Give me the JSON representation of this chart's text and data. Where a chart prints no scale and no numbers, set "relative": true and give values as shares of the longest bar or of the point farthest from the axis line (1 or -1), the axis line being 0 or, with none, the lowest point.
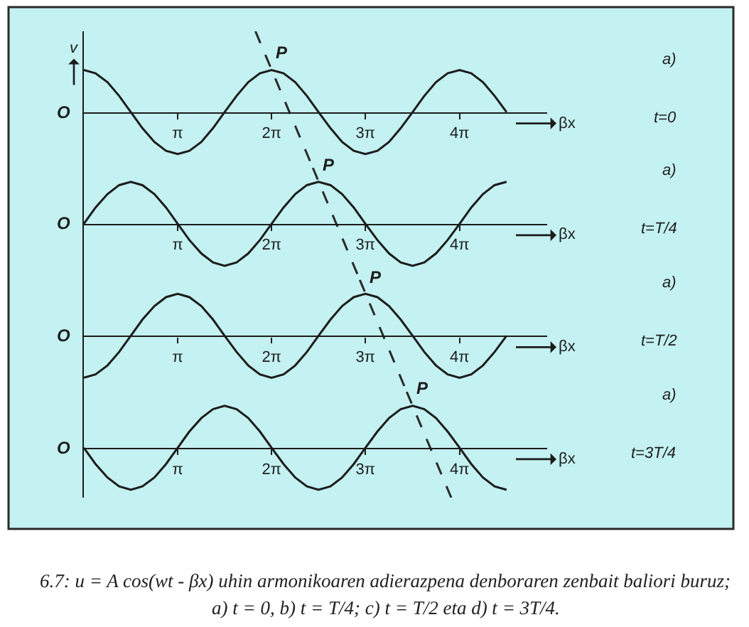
{
  "chart_data": [
    {
      "type": "line",
      "relative": true,
      "xlabel": "βx",
      "ylabel": "v",
      "xlim": [
        0,
        15.5
      ],
      "xticks": [
        {
          "value": 3.14,
          "label": "π"
        },
        {
          "value": 6.28,
          "label": "2π"
        },
        {
          "value": 9.42,
          "label": "3π"
        },
        {
          "value": 12.57,
          "label": "4π"
        }
      ],
      "x": [
        0,
        0.39,
        0.79,
        1.18,
        1.57,
        1.96,
        2.36,
        2.75,
        3.14,
        3.53,
        3.93,
        4.32,
        4.71,
        5.11,
        5.5,
        5.89,
        6.28,
        6.68,
        7.07,
        7.46,
        7.85,
        8.25,
        8.64,
        9.03,
        9.42,
        9.82,
        10.21,
        10.6,
        11.0,
        11.39,
        11.78,
        12.17,
        12.57,
        12.96,
        13.35,
        13.74,
        14.14
      ],
      "series": [
        {
          "color": "#1c1c1c",
          "values": [
            0.52,
            0.48,
            0.37,
            0.2,
            0,
            -0.2,
            -0.37,
            -0.48,
            -0.52,
            -0.48,
            -0.37,
            -0.2,
            0,
            0.2,
            0.37,
            0.48,
            0.52,
            0.48,
            0.37,
            0.2,
            0,
            -0.2,
            -0.37,
            -0.48,
            -0.52,
            -0.48,
            -0.37,
            -0.2,
            0,
            0.2,
            0.37,
            0.48,
            0.52,
            0.48,
            0.37,
            0.2,
            0
          ]
        },
        {
          "color": "#2a2a2a",
          "line_style": "dashed",
          "x": [
            5.74,
            7.66
          ],
          "values": [
            1,
            -0.69
          ]
        }
      ],
      "annotations": [
        "O",
        "a)",
        "t=0",
        {
          "text": "P",
          "x": 6.28,
          "y": 0.52
        }
      ]
    },
    {
      "type": "line",
      "relative": true,
      "xlabel": "βx",
      "xlim": [
        0,
        15.5
      ],
      "xticks": [
        {
          "value": 3.14,
          "label": "π"
        },
        {
          "value": 6.28,
          "label": "2π"
        },
        {
          "value": 9.42,
          "label": "3π"
        },
        {
          "value": 12.57,
          "label": "4π"
        }
      ],
      "x": [
        0,
        0.39,
        0.79,
        1.18,
        1.57,
        1.96,
        2.36,
        2.75,
        3.14,
        3.53,
        3.93,
        4.32,
        4.71,
        5.11,
        5.5,
        5.89,
        6.28,
        6.68,
        7.07,
        7.46,
        7.85,
        8.25,
        8.64,
        9.03,
        9.42,
        9.82,
        10.21,
        10.6,
        11.0,
        11.39,
        11.78,
        12.17,
        12.57,
        12.96,
        13.35,
        13.74,
        14.14
      ],
      "series": [
        {
          "color": "#1c1c1c",
          "values": [
            0,
            0.29,
            0.53,
            0.69,
            0.75,
            0.69,
            0.53,
            0.29,
            0,
            -0.29,
            -0.53,
            -0.69,
            -0.75,
            -0.69,
            -0.53,
            -0.29,
            0,
            0.29,
            0.53,
            0.69,
            0.75,
            0.69,
            0.53,
            0.29,
            0,
            -0.29,
            -0.53,
            -0.69,
            -0.75,
            -0.69,
            -0.53,
            -0.29,
            0,
            0.29,
            0.53,
            0.69,
            0.75
          ]
        },
        {
          "color": "#2a2a2a",
          "line_style": "dashed",
          "x": [
            7.66,
            9.23
          ],
          "values": [
            1,
            -1
          ]
        }
      ],
      "annotations": [
        "O",
        "a)",
        "t=T/4",
        {
          "text": "P",
          "x": 7.85,
          "y": 0.75
        }
      ]
    },
    {
      "type": "line",
      "relative": true,
      "xlabel": "βx",
      "xlim": [
        0,
        15.5
      ],
      "xticks": [
        {
          "value": 3.14,
          "label": "π"
        },
        {
          "value": 6.28,
          "label": "2π"
        },
        {
          "value": 9.42,
          "label": "3π"
        },
        {
          "value": 12.57,
          "label": "4π"
        }
      ],
      "x": [
        0,
        0.39,
        0.79,
        1.18,
        1.57,
        1.96,
        2.36,
        2.75,
        3.14,
        3.53,
        3.93,
        4.32,
        4.71,
        5.11,
        5.5,
        5.89,
        6.28,
        6.68,
        7.07,
        7.46,
        7.85,
        8.25,
        8.64,
        9.03,
        9.42,
        9.82,
        10.21,
        10.6,
        11.0,
        11.39,
        11.78,
        12.17,
        12.57,
        12.96,
        13.35,
        13.74,
        14.14
      ],
      "series": [
        {
          "color": "#1c1c1c",
          "values": [
            -0.75,
            -0.69,
            -0.53,
            -0.29,
            0,
            0.29,
            0.53,
            0.69,
            0.75,
            0.69,
            0.53,
            0.29,
            0,
            -0.29,
            -0.53,
            -0.69,
            -0.75,
            -0.69,
            -0.53,
            -0.29,
            0,
            0.29,
            0.53,
            0.69,
            0.75,
            0.69,
            0.53,
            0.29,
            0,
            -0.29,
            -0.53,
            -0.69,
            -0.75,
            -0.69,
            -0.53,
            -0.29,
            0
          ]
        },
        {
          "color": "#2a2a2a",
          "line_style": "dashed",
          "x": [
            9.23,
            10.8
          ],
          "values": [
            1,
            -1
          ]
        }
      ],
      "annotations": [
        "O",
        "a)",
        "t=T/2",
        {
          "text": "P",
          "x": 9.42,
          "y": 0.75
        }
      ]
    },
    {
      "type": "line",
      "relative": true,
      "xlabel": "βx",
      "xlim": [
        0,
        15.5
      ],
      "xticks": [
        {
          "value": 3.14,
          "label": "π"
        },
        {
          "value": 6.28,
          "label": "2π"
        },
        {
          "value": 9.42,
          "label": "3π"
        },
        {
          "value": 12.57,
          "label": "4π"
        }
      ],
      "x": [
        0,
        0.39,
        0.79,
        1.18,
        1.57,
        1.96,
        2.36,
        2.75,
        3.14,
        3.53,
        3.93,
        4.32,
        4.71,
        5.11,
        5.5,
        5.89,
        6.28,
        6.68,
        7.07,
        7.46,
        7.85,
        8.25,
        8.64,
        9.03,
        9.42,
        9.82,
        10.21,
        10.6,
        11.0,
        11.39,
        11.78,
        12.17,
        12.57,
        12.96,
        13.35,
        13.74,
        14.14
      ],
      "series": [
        {
          "color": "#1c1c1c",
          "values": [
            0,
            -0.29,
            -0.53,
            -0.69,
            -0.75,
            -0.69,
            -0.53,
            -0.29,
            0,
            0.29,
            0.53,
            0.69,
            0.75,
            0.69,
            0.53,
            0.29,
            0,
            -0.29,
            -0.53,
            -0.69,
            -0.75,
            -0.69,
            -0.53,
            -0.29,
            0,
            0.29,
            0.53,
            0.69,
            0.75,
            0.69,
            0.53,
            0.29,
            0,
            -0.29,
            -0.53,
            -0.69,
            -0.75
          ]
        },
        {
          "color": "#2a2a2a",
          "line_style": "dashed",
          "x": [
            10.8,
            12.29
          ],
          "values": [
            1,
            -0.89
          ]
        }
      ],
      "annotations": [
        "O",
        "a)",
        "t=3T/4",
        {
          "text": "P",
          "x": 11.0,
          "y": 0.75
        },
        "6.7: u = A cos(wt - βx) uhin armonikoaren adierazpena denboraren zenbait baliori buruz;",
        "a) t = 0, b) t = T/4; c) t = T/2 eta d) t = 3T/4."
      ]
    }
  ]
}
